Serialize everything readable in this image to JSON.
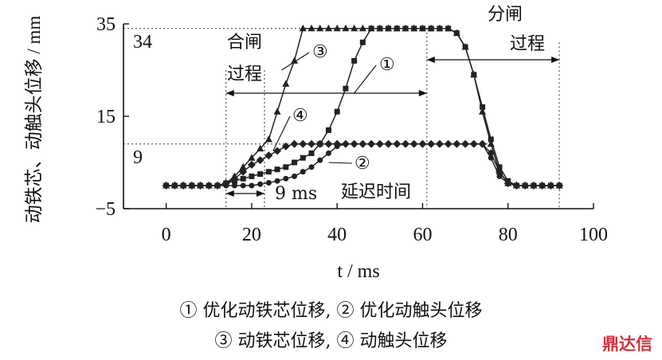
{
  "chart_data": {
    "type": "line",
    "xlabel": "t / ms",
    "ylabel": "动铁芯、动触头位移 / mm",
    "xlim": [
      -10,
      100
    ],
    "ylim": [
      -5,
      35
    ],
    "xticks": [
      0,
      20,
      40,
      60,
      80,
      100
    ],
    "yticks": [
      -5,
      15,
      35
    ],
    "ytick_labels": [
      "−5",
      "15",
      "35"
    ],
    "xtick_labels": [
      "0",
      "20",
      "40",
      "60",
      "80",
      "100"
    ],
    "grid": false,
    "series": [
      {
        "name": "③ 动铁芯位移",
        "marker": "triangle",
        "x": [
          0,
          2,
          4,
          6,
          8,
          10,
          12,
          14,
          16,
          18,
          20,
          22,
          24,
          26,
          28,
          30,
          32,
          34,
          36,
          38,
          40,
          42,
          44,
          46,
          48,
          50,
          52,
          54,
          56,
          58,
          60,
          62,
          64,
          66,
          68,
          70,
          72,
          74,
          76,
          78,
          80,
          82,
          84,
          86,
          88,
          90,
          92
        ],
        "y": [
          0,
          0,
          0,
          0,
          0,
          0,
          0,
          0.5,
          2,
          4,
          6,
          8,
          10,
          16,
          22,
          27,
          34,
          34,
          34,
          34,
          34,
          34,
          34,
          34,
          34,
          34,
          34,
          34,
          34,
          34,
          34,
          34,
          34,
          34,
          33,
          30,
          24,
          16,
          9,
          3,
          0.5,
          0,
          0,
          0,
          0,
          0,
          0
        ]
      },
      {
        "name": "① 优化动铁芯位移",
        "marker": "square",
        "x": [
          0,
          2,
          4,
          6,
          8,
          10,
          12,
          14,
          16,
          18,
          20,
          22,
          24,
          26,
          28,
          30,
          32,
          34,
          36,
          38,
          40,
          42,
          44,
          46,
          48,
          50,
          52,
          54,
          56,
          58,
          60,
          62,
          64,
          66,
          68,
          70,
          72,
          74,
          76,
          78,
          80,
          82,
          84,
          86,
          88,
          90,
          92
        ],
        "y": [
          0,
          0,
          0,
          0,
          0,
          0,
          0,
          0.5,
          1,
          1.5,
          2,
          2.5,
          3,
          3.5,
          4,
          5,
          6,
          7,
          9,
          12,
          16,
          21,
          27,
          31,
          34,
          34,
          34,
          34,
          34,
          34,
          34,
          34,
          34,
          34,
          33,
          30,
          24,
          17,
          10,
          4,
          1,
          0,
          0,
          0,
          0,
          0,
          0
        ]
      },
      {
        "name": "④ 动触头位移",
        "marker": "diamond",
        "x": [
          0,
          2,
          4,
          6,
          8,
          10,
          12,
          14,
          16,
          18,
          20,
          22,
          24,
          26,
          28,
          30,
          32,
          34,
          36,
          38,
          40,
          42,
          44,
          46,
          48,
          50,
          52,
          54,
          56,
          58,
          60,
          62,
          64,
          66,
          68,
          70,
          72,
          74,
          76,
          78,
          80,
          82,
          84,
          86,
          88,
          90,
          92
        ],
        "y": [
          0,
          0,
          0,
          0,
          0,
          0,
          0,
          0.5,
          1.5,
          3,
          4.5,
          5.5,
          6.5,
          7.5,
          8.5,
          9,
          9,
          9,
          9,
          9,
          9,
          9,
          9,
          9,
          9,
          9,
          9,
          9,
          9,
          9,
          9,
          9,
          9,
          9,
          9,
          9,
          9,
          9,
          7,
          3,
          0.5,
          0,
          0,
          0,
          0,
          0,
          0
        ]
      },
      {
        "name": "② 优化动触头位移",
        "marker": "circle",
        "x": [
          0,
          2,
          4,
          6,
          8,
          10,
          12,
          14,
          16,
          18,
          20,
          22,
          24,
          26,
          28,
          30,
          32,
          34,
          36,
          38,
          40,
          42,
          44,
          46,
          48,
          50,
          52,
          54,
          56,
          58,
          60,
          62,
          64,
          66,
          68,
          70,
          72,
          74,
          76,
          78,
          80,
          82,
          84,
          86,
          88,
          90,
          92
        ],
        "y": [
          0,
          0,
          0,
          0,
          0,
          0,
          0,
          0,
          0,
          0,
          0,
          0.3,
          0.6,
          1,
          1.5,
          2,
          3,
          4,
          5.5,
          7,
          8.5,
          9,
          9,
          9,
          9,
          9,
          9,
          9,
          9,
          9,
          9,
          9,
          9,
          9,
          9,
          9,
          9,
          9,
          6,
          2,
          0.5,
          0,
          0,
          0,
          0,
          0,
          0
        ]
      }
    ],
    "reference_lines": [
      {
        "axis": "y",
        "value": 34,
        "label": "34"
      },
      {
        "axis": "y",
        "value": 9,
        "label": "9"
      },
      {
        "axis": "x",
        "value": 14
      },
      {
        "axis": "x",
        "value": 23
      },
      {
        "axis": "x",
        "value": 61
      },
      {
        "axis": "x",
        "value": 92
      }
    ],
    "annotations": [
      {
        "text": "合闸",
        "line2": "过程"
      },
      {
        "text": "分闸",
        "line2": "过程"
      },
      {
        "text": "9 ms"
      },
      {
        "text": "延迟时间"
      },
      {
        "text": "①"
      },
      {
        "text": "②"
      },
      {
        "text": "③"
      },
      {
        "text": "④"
      }
    ],
    "legend": {
      "line1": "① 优化动铁芯位移, ② 优化动触头位移",
      "line2": "③ 动铁芯位移, ④ 动触头位移"
    }
  },
  "watermark": "鼎达信",
  "colors": {
    "line": "#222222",
    "axis": "#111111",
    "watermark": "#d1343e"
  }
}
